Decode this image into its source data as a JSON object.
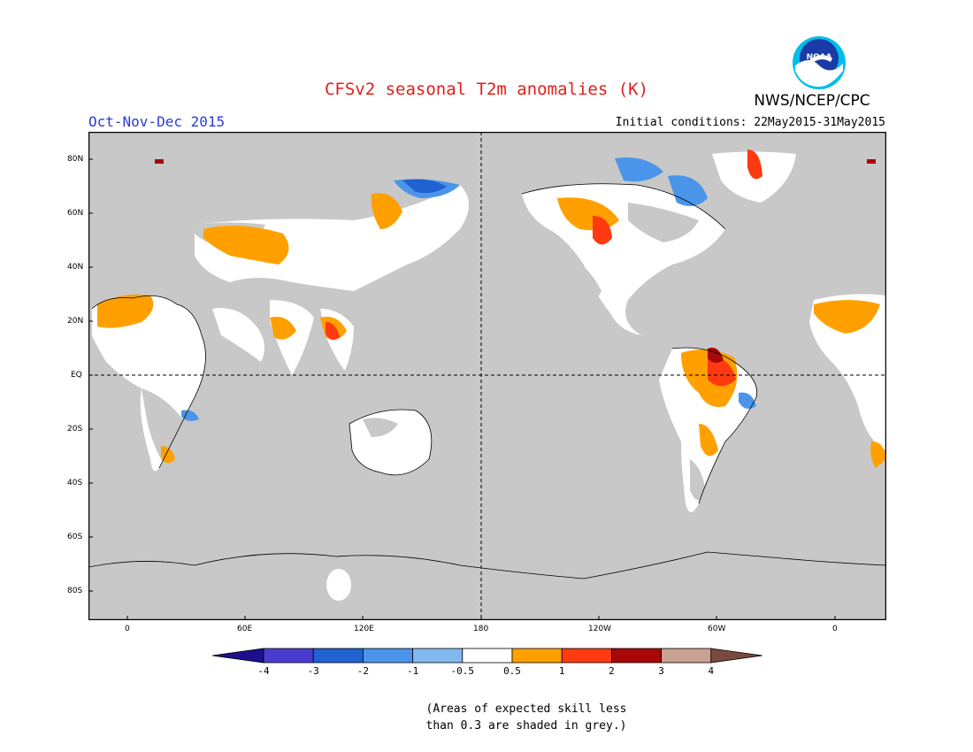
{
  "header": {
    "title": "CFSv2 seasonal T2m anomalies (K)",
    "season": "Oct-Nov-Dec 2015",
    "initial_conditions": "Initial conditions: 22May2015-31May2015",
    "agency": "NWS/NCEP/CPC",
    "logo_text": "NOAA"
  },
  "map": {
    "background_color": "#c8c8c8",
    "lat_labels": [
      "80N",
      "60N",
      "40N",
      "20N",
      "EQ",
      "20S",
      "40S",
      "60S",
      "80S"
    ],
    "lon_labels": [
      "0",
      "60E",
      "120E",
      "180",
      "120W",
      "60W",
      "0"
    ]
  },
  "legend": {
    "labels": [
      "-4",
      "-3",
      "-2",
      "-1",
      "-0.5",
      "0.5",
      "1",
      "2",
      "3",
      "4"
    ],
    "colors": [
      "#1e0f90",
      "#4a3cd0",
      "#1f62d0",
      "#4a95ea",
      "#82b8f0",
      "#ffffff",
      "#ffa000",
      "#ff3a10",
      "#a80808",
      "#c9a191",
      "#7a4a3c"
    ]
  },
  "note": {
    "line1": "(Areas of expected skill less",
    "line2": "than 0.3 are shaded in grey.)"
  }
}
